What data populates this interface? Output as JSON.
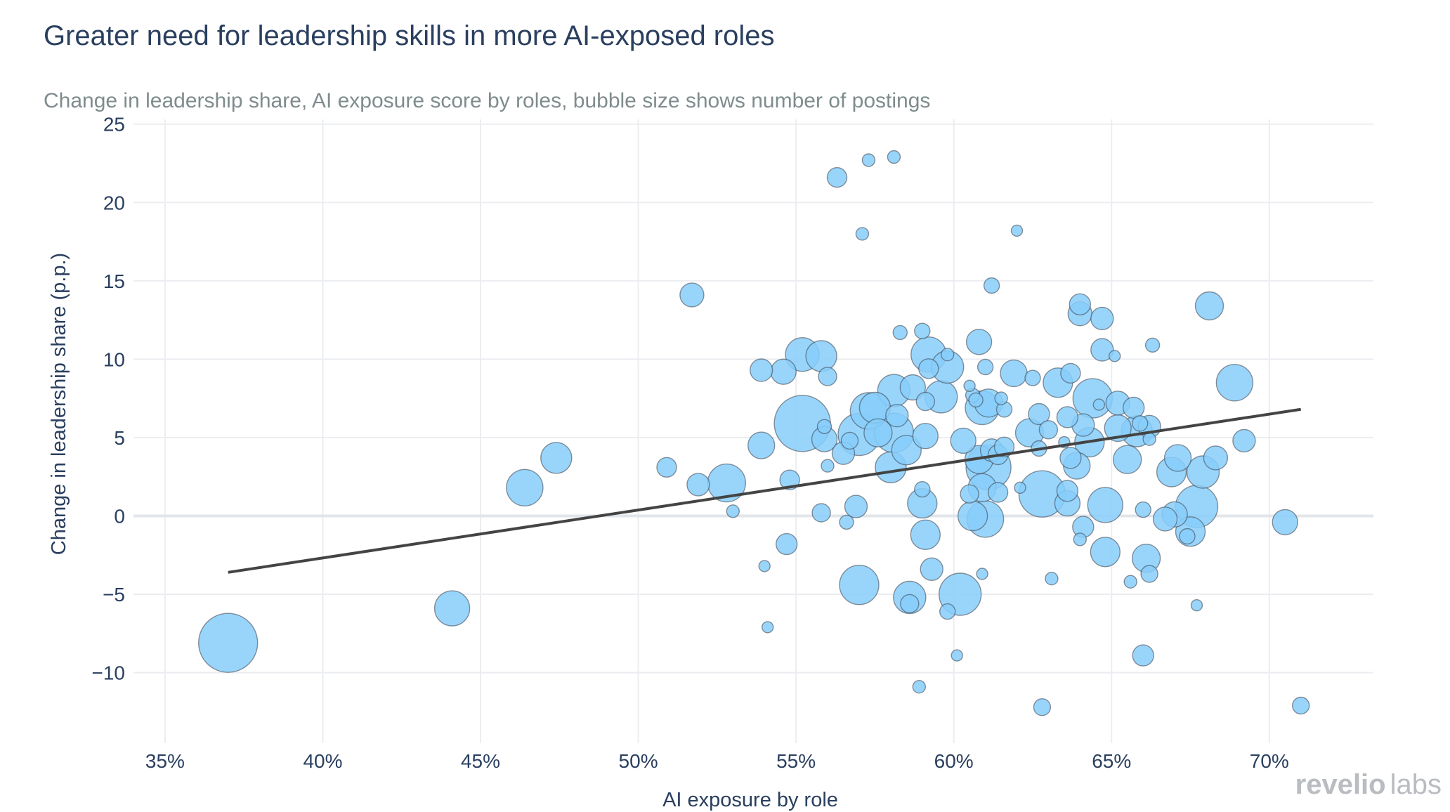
{
  "chart_data": {
    "type": "scatter",
    "title": "Greater need for leadership skills in more AI-exposed roles",
    "subtitle": "Change in leadership share, AI exposure score by roles, bubble size shows number of postings",
    "xlabel": "AI exposure by role",
    "ylabel": "Change in leadership share (p.p.)",
    "xlim": [
      0.34,
      0.733
    ],
    "ylim": [
      -14.5,
      25.3
    ],
    "x_ticks": [
      0.35,
      0.4,
      0.45,
      0.5,
      0.55,
      0.6,
      0.65,
      0.7
    ],
    "x_tick_labels": [
      "35%",
      "40%",
      "45%",
      "50%",
      "55%",
      "60%",
      "65%",
      "70%"
    ],
    "y_ticks": [
      25,
      20,
      15,
      10,
      5,
      0,
      -5,
      -10
    ],
    "y_tick_labels": [
      "25",
      "20",
      "15",
      "10",
      "5",
      "0",
      "−5",
      "−10"
    ],
    "grid": true,
    "legend": "none",
    "bubble_color": "#87CEFA",
    "trendline": {
      "x": [
        0.37,
        0.71
      ],
      "y": [
        -3.6,
        6.8
      ],
      "color": "#444444"
    },
    "points": [
      {
        "x": 0.37,
        "y": -8.1,
        "size": 4.2
      },
      {
        "x": 0.441,
        "y": -5.9,
        "size": 2.5
      },
      {
        "x": 0.464,
        "y": 1.8,
        "size": 2.6
      },
      {
        "x": 0.474,
        "y": 3.7,
        "size": 2.2
      },
      {
        "x": 0.509,
        "y": 3.1,
        "size": 1.4
      },
      {
        "x": 0.517,
        "y": 14.1,
        "size": 1.7
      },
      {
        "x": 0.519,
        "y": 2.0,
        "size": 1.6
      },
      {
        "x": 0.528,
        "y": 2.1,
        "size": 2.7
      },
      {
        "x": 0.53,
        "y": 0.3,
        "size": 0.9
      },
      {
        "x": 0.539,
        "y": 9.3,
        "size": 1.6
      },
      {
        "x": 0.539,
        "y": 4.5,
        "size": 1.9
      },
      {
        "x": 0.54,
        "y": -3.2,
        "size": 0.8
      },
      {
        "x": 0.541,
        "y": -7.1,
        "size": 0.8
      },
      {
        "x": 0.546,
        "y": 9.2,
        "size": 1.8
      },
      {
        "x": 0.547,
        "y": -1.8,
        "size": 1.5
      },
      {
        "x": 0.548,
        "y": 2.3,
        "size": 1.4
      },
      {
        "x": 0.552,
        "y": 5.9,
        "size": 4.0
      },
      {
        "x": 0.552,
        "y": 10.3,
        "size": 2.4
      },
      {
        "x": 0.558,
        "y": 10.2,
        "size": 2.2
      },
      {
        "x": 0.558,
        "y": 0.2,
        "size": 1.3
      },
      {
        "x": 0.559,
        "y": 5.7,
        "size": 1.0
      },
      {
        "x": 0.559,
        "y": 4.9,
        "size": 1.8
      },
      {
        "x": 0.56,
        "y": 3.2,
        "size": 0.9
      },
      {
        "x": 0.56,
        "y": 8.9,
        "size": 1.3
      },
      {
        "x": 0.563,
        "y": 21.6,
        "size": 1.4
      },
      {
        "x": 0.565,
        "y": 4.0,
        "size": 1.6
      },
      {
        "x": 0.566,
        "y": -0.4,
        "size": 1.0
      },
      {
        "x": 0.567,
        "y": 4.8,
        "size": 1.2
      },
      {
        "x": 0.569,
        "y": 0.6,
        "size": 1.6
      },
      {
        "x": 0.57,
        "y": -4.4,
        "size": 2.8
      },
      {
        "x": 0.57,
        "y": 5.2,
        "size": 3.0
      },
      {
        "x": 0.571,
        "y": 18.0,
        "size": 0.9
      },
      {
        "x": 0.573,
        "y": 22.7,
        "size": 0.9
      },
      {
        "x": 0.573,
        "y": 6.7,
        "size": 2.6
      },
      {
        "x": 0.575,
        "y": 6.9,
        "size": 2.2
      },
      {
        "x": 0.576,
        "y": 5.3,
        "size": 2.0
      },
      {
        "x": 0.58,
        "y": 3.1,
        "size": 2.2
      },
      {
        "x": 0.581,
        "y": 8.0,
        "size": 2.3
      },
      {
        "x": 0.581,
        "y": 22.9,
        "size": 0.9
      },
      {
        "x": 0.581,
        "y": 5.3,
        "size": 2.8
      },
      {
        "x": 0.582,
        "y": 6.4,
        "size": 1.6
      },
      {
        "x": 0.583,
        "y": 11.7,
        "size": 1.0
      },
      {
        "x": 0.585,
        "y": 4.2,
        "size": 2.1
      },
      {
        "x": 0.586,
        "y": -5.2,
        "size": 2.3
      },
      {
        "x": 0.586,
        "y": -5.6,
        "size": 1.3
      },
      {
        "x": 0.587,
        "y": 8.2,
        "size": 1.8
      },
      {
        "x": 0.589,
        "y": -10.9,
        "size": 0.9
      },
      {
        "x": 0.59,
        "y": 11.8,
        "size": 1.1
      },
      {
        "x": 0.59,
        "y": 1.7,
        "size": 1.1
      },
      {
        "x": 0.59,
        "y": 0.8,
        "size": 2.1
      },
      {
        "x": 0.591,
        "y": 7.3,
        "size": 1.3
      },
      {
        "x": 0.591,
        "y": 5.1,
        "size": 1.8
      },
      {
        "x": 0.591,
        "y": -1.2,
        "size": 2.1
      },
      {
        "x": 0.592,
        "y": 10.3,
        "size": 2.5
      },
      {
        "x": 0.592,
        "y": 9.4,
        "size": 1.4
      },
      {
        "x": 0.593,
        "y": -3.4,
        "size": 1.6
      },
      {
        "x": 0.596,
        "y": 7.6,
        "size": 2.3
      },
      {
        "x": 0.598,
        "y": 9.5,
        "size": 2.3
      },
      {
        "x": 0.598,
        "y": 10.3,
        "size": 0.9
      },
      {
        "x": 0.598,
        "y": -6.1,
        "size": 1.1
      },
      {
        "x": 0.601,
        "y": -8.9,
        "size": 0.8
      },
      {
        "x": 0.602,
        "y": -5.0,
        "size": 3.0
      },
      {
        "x": 0.603,
        "y": 4.8,
        "size": 1.8
      },
      {
        "x": 0.605,
        "y": 1.4,
        "size": 1.3
      },
      {
        "x": 0.605,
        "y": 8.3,
        "size": 0.8
      },
      {
        "x": 0.606,
        "y": 7.7,
        "size": 1.0
      },
      {
        "x": 0.606,
        "y": 0.0,
        "size": 2.1
      },
      {
        "x": 0.607,
        "y": 7.4,
        "size": 1.0
      },
      {
        "x": 0.608,
        "y": 11.1,
        "size": 1.8
      },
      {
        "x": 0.608,
        "y": 3.6,
        "size": 2.0
      },
      {
        "x": 0.609,
        "y": -3.7,
        "size": 0.8
      },
      {
        "x": 0.609,
        "y": 1.8,
        "size": 2.0
      },
      {
        "x": 0.609,
        "y": 6.9,
        "size": 2.4
      },
      {
        "x": 0.61,
        "y": 9.5,
        "size": 1.1
      },
      {
        "x": 0.61,
        "y": -0.2,
        "size": 2.6
      },
      {
        "x": 0.611,
        "y": 7.2,
        "size": 2.0
      },
      {
        "x": 0.611,
        "y": 3.1,
        "size": 3.2
      },
      {
        "x": 0.612,
        "y": 14.7,
        "size": 1.1
      },
      {
        "x": 0.612,
        "y": 4.2,
        "size": 1.6
      },
      {
        "x": 0.614,
        "y": 3.9,
        "size": 1.4
      },
      {
        "x": 0.614,
        "y": 1.5,
        "size": 1.4
      },
      {
        "x": 0.615,
        "y": 7.5,
        "size": 0.9
      },
      {
        "x": 0.616,
        "y": 6.8,
        "size": 1.1
      },
      {
        "x": 0.616,
        "y": 4.4,
        "size": 1.4
      },
      {
        "x": 0.619,
        "y": 9.1,
        "size": 1.9
      },
      {
        "x": 0.62,
        "y": 18.2,
        "size": 0.8
      },
      {
        "x": 0.621,
        "y": 1.8,
        "size": 0.8
      },
      {
        "x": 0.624,
        "y": 5.3,
        "size": 2.0
      },
      {
        "x": 0.625,
        "y": 8.8,
        "size": 1.1
      },
      {
        "x": 0.627,
        "y": 6.5,
        "size": 1.5
      },
      {
        "x": 0.627,
        "y": 4.3,
        "size": 1.1
      },
      {
        "x": 0.628,
        "y": -12.2,
        "size": 1.2
      },
      {
        "x": 0.628,
        "y": 1.4,
        "size": 3.3
      },
      {
        "x": 0.63,
        "y": 5.5,
        "size": 1.3
      },
      {
        "x": 0.631,
        "y": -4.0,
        "size": 0.9
      },
      {
        "x": 0.633,
        "y": 8.5,
        "size": 2.1
      },
      {
        "x": 0.635,
        "y": 4.7,
        "size": 0.8
      },
      {
        "x": 0.636,
        "y": 1.6,
        "size": 1.5
      },
      {
        "x": 0.636,
        "y": 6.3,
        "size": 1.5
      },
      {
        "x": 0.636,
        "y": 0.8,
        "size": 1.8
      },
      {
        "x": 0.637,
        "y": 3.7,
        "size": 1.5
      },
      {
        "x": 0.637,
        "y": 9.1,
        "size": 1.4
      },
      {
        "x": 0.639,
        "y": 3.2,
        "size": 1.9
      },
      {
        "x": 0.64,
        "y": 13.5,
        "size": 1.5
      },
      {
        "x": 0.64,
        "y": 12.9,
        "size": 1.7
      },
      {
        "x": 0.64,
        "y": -1.5,
        "size": 0.9
      },
      {
        "x": 0.641,
        "y": 5.8,
        "size": 1.6
      },
      {
        "x": 0.641,
        "y": -0.7,
        "size": 1.5
      },
      {
        "x": 0.643,
        "y": 4.7,
        "size": 2.1
      },
      {
        "x": 0.644,
        "y": 7.5,
        "size": 2.8
      },
      {
        "x": 0.646,
        "y": 7.1,
        "size": 0.8
      },
      {
        "x": 0.647,
        "y": 12.6,
        "size": 1.6
      },
      {
        "x": 0.647,
        "y": 10.6,
        "size": 1.6
      },
      {
        "x": 0.648,
        "y": 0.7,
        "size": 2.5
      },
      {
        "x": 0.648,
        "y": -2.3,
        "size": 2.1
      },
      {
        "x": 0.651,
        "y": 10.2,
        "size": 0.8
      },
      {
        "x": 0.652,
        "y": 7.2,
        "size": 1.7
      },
      {
        "x": 0.652,
        "y": 5.6,
        "size": 1.9
      },
      {
        "x": 0.655,
        "y": 3.6,
        "size": 2.0
      },
      {
        "x": 0.656,
        "y": -4.2,
        "size": 0.9
      },
      {
        "x": 0.657,
        "y": 6.9,
        "size": 1.5
      },
      {
        "x": 0.658,
        "y": 5.4,
        "size": 2.2
      },
      {
        "x": 0.659,
        "y": 5.9,
        "size": 1.1
      },
      {
        "x": 0.66,
        "y": -8.9,
        "size": 1.5
      },
      {
        "x": 0.66,
        "y": 0.4,
        "size": 1.1
      },
      {
        "x": 0.661,
        "y": -2.7,
        "size": 2.0
      },
      {
        "x": 0.662,
        "y": 5.7,
        "size": 1.6
      },
      {
        "x": 0.662,
        "y": 4.9,
        "size": 0.9
      },
      {
        "x": 0.662,
        "y": -3.7,
        "size": 1.2
      },
      {
        "x": 0.663,
        "y": 10.9,
        "size": 1.0
      },
      {
        "x": 0.667,
        "y": -0.2,
        "size": 1.7
      },
      {
        "x": 0.669,
        "y": 2.8,
        "size": 2.1
      },
      {
        "x": 0.67,
        "y": 0.1,
        "size": 1.8
      },
      {
        "x": 0.671,
        "y": 3.7,
        "size": 1.9
      },
      {
        "x": 0.674,
        "y": -1.3,
        "size": 1.1
      },
      {
        "x": 0.675,
        "y": -1.0,
        "size": 2.1
      },
      {
        "x": 0.677,
        "y": -5.7,
        "size": 0.8
      },
      {
        "x": 0.677,
        "y": 0.6,
        "size": 3.0
      },
      {
        "x": 0.679,
        "y": 2.8,
        "size": 2.3
      },
      {
        "x": 0.681,
        "y": 13.4,
        "size": 2.0
      },
      {
        "x": 0.683,
        "y": 3.7,
        "size": 1.7
      },
      {
        "x": 0.689,
        "y": 8.5,
        "size": 2.6
      },
      {
        "x": 0.692,
        "y": 4.8,
        "size": 1.6
      },
      {
        "x": 0.705,
        "y": -0.4,
        "size": 1.8
      },
      {
        "x": 0.71,
        "y": -12.1,
        "size": 1.2
      }
    ]
  },
  "branding": {
    "logo_part1": "revelio",
    "logo_part2": "labs"
  }
}
